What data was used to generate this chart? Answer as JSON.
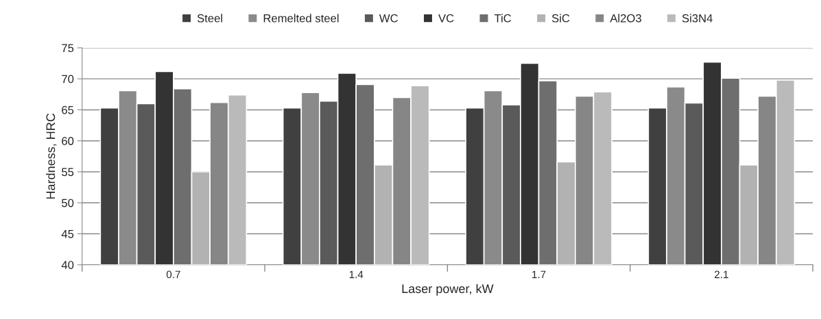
{
  "chart_data": {
    "type": "bar",
    "xlabel": "Laser power, kW",
    "ylabel": "Hardness, HRC",
    "categories": [
      "0.7",
      "1.4",
      "1.7",
      "2.1"
    ],
    "series": [
      {
        "name": "Steel",
        "color": "#404040",
        "values": [
          65.3,
          65.3,
          65.3,
          65.3
        ]
      },
      {
        "name": "Remelted steel",
        "color": "#8a8a8a",
        "values": [
          68.1,
          67.8,
          68.1,
          68.7
        ]
      },
      {
        "name": "WC",
        "color": "#5a5a5a",
        "values": [
          66.0,
          66.4,
          65.8,
          66.1
        ]
      },
      {
        "name": "VC",
        "color": "#333333",
        "values": [
          71.2,
          70.9,
          72.5,
          72.7
        ]
      },
      {
        "name": "TiC",
        "color": "#6e6e6e",
        "values": [
          68.4,
          69.1,
          69.7,
          70.1
        ]
      },
      {
        "name": "SiC",
        "color": "#b2b2b2",
        "values": [
          55.0,
          56.1,
          56.6,
          56.1
        ]
      },
      {
        "name": "Al2O3",
        "color": "#868686",
        "values": [
          66.2,
          67.0,
          67.2,
          67.2
        ]
      },
      {
        "name": "Si3N4",
        "color": "#bababa",
        "values": [
          67.4,
          68.9,
          67.9,
          69.8
        ]
      }
    ],
    "ylim": [
      40,
      75
    ],
    "yticks": [
      40,
      45,
      50,
      55,
      60,
      65,
      70,
      75
    ],
    "grid": "y",
    "legend": "top"
  }
}
